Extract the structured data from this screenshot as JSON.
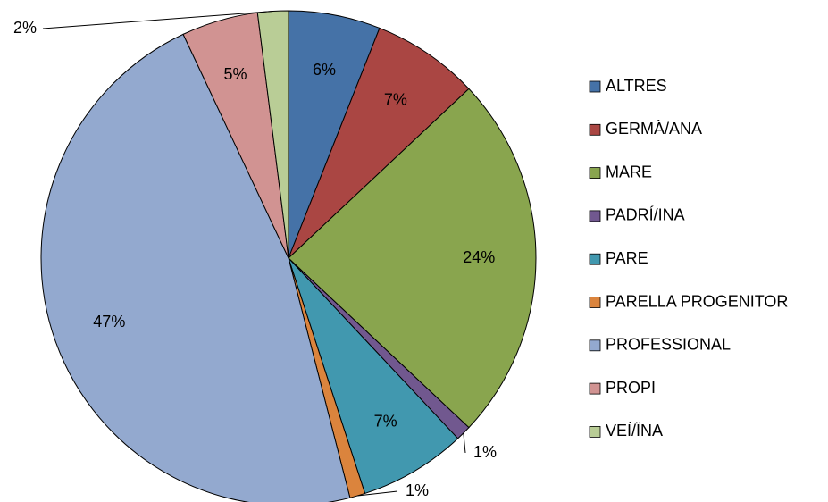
{
  "chart_data": {
    "type": "pie",
    "categories": [
      "ALTRES",
      "GERMÀ/ANA",
      "MARE",
      "PADRÍ/INA",
      "PARE",
      "PARELLA PROGENITOR",
      "PROFESSIONAL",
      "PROPI",
      "VEÍ/ÏNA"
    ],
    "values": [
      6,
      7,
      24,
      1,
      7,
      1,
      47,
      5,
      2
    ],
    "value_labels": [
      "6%",
      "7%",
      "24%",
      "1%",
      "7%",
      "1%",
      "47%",
      "5%",
      "2%"
    ],
    "colors": [
      "#4572a7",
      "#aa4643",
      "#89a54e",
      "#71588f",
      "#4198af",
      "#db843d",
      "#93a9cf",
      "#d19392",
      "#b9cd96"
    ],
    "legend": "right"
  }
}
